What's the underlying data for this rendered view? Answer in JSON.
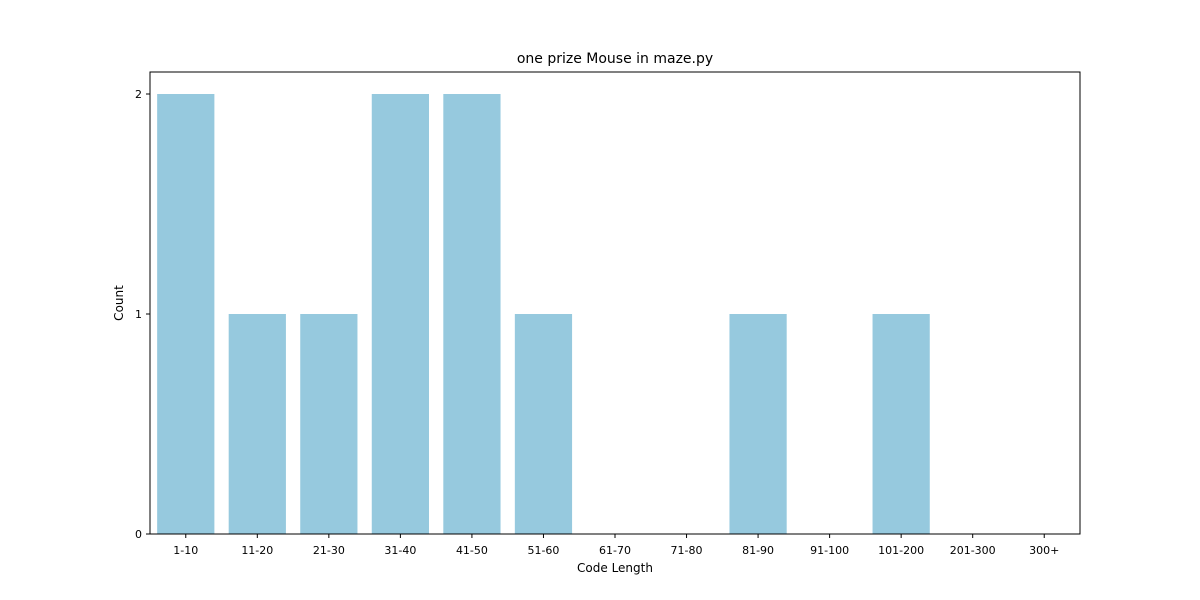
{
  "chart_data": {
    "type": "bar",
    "title": "one prize Mouse in maze.py",
    "xlabel": "Code Length",
    "ylabel": "Count",
    "categories": [
      "1-10",
      "11-20",
      "21-30",
      "31-40",
      "41-50",
      "51-60",
      "61-70",
      "71-80",
      "81-90",
      "91-100",
      "101-200",
      "201-300",
      "300+"
    ],
    "values": [
      2,
      1,
      1,
      2,
      2,
      1,
      0,
      0,
      1,
      0,
      1,
      0,
      0
    ],
    "ylim": [
      0,
      2.1
    ],
    "yticks": [
      0,
      1,
      2
    ],
    "grid": false,
    "legend": "none",
    "colors": {
      "bar": "#96c9de",
      "axis": "#000000"
    }
  }
}
